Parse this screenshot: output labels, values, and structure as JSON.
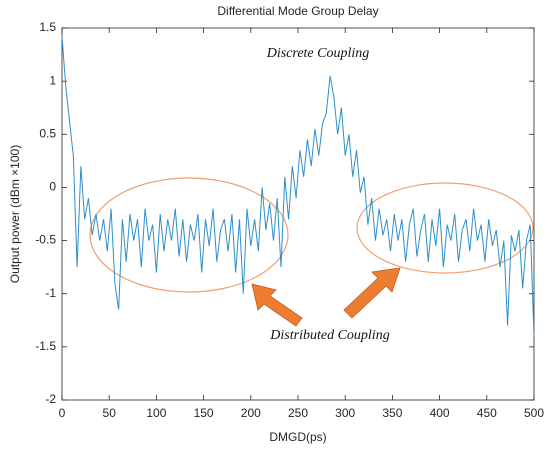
{
  "chart_data": {
    "type": "line",
    "title": "Differential Mode Group Delay",
    "xlabel": "DMGD(ps)",
    "ylabel": "Output power (dBm ×100)",
    "annotations": [
      "Discrete Coupling",
      "Distributed Coupling"
    ],
    "xlim": [
      0,
      500
    ],
    "ylim": [
      -2,
      1.5
    ],
    "xticks": [
      0,
      50,
      100,
      150,
      200,
      250,
      300,
      350,
      400,
      450,
      500
    ],
    "yticks": [
      -2,
      -1.5,
      -1,
      -0.5,
      0,
      0.5,
      1,
      1.5
    ],
    "x": [
      0,
      4,
      8,
      12,
      16,
      20,
      24,
      28,
      32,
      36,
      40,
      44,
      48,
      52,
      56,
      60,
      64,
      68,
      72,
      76,
      80,
      84,
      88,
      92,
      96,
      100,
      104,
      108,
      112,
      116,
      120,
      124,
      128,
      132,
      136,
      140,
      144,
      148,
      152,
      156,
      160,
      164,
      168,
      172,
      176,
      180,
      184,
      188,
      192,
      196,
      200,
      204,
      208,
      212,
      216,
      220,
      224,
      228,
      232,
      236,
      240,
      244,
      248,
      252,
      256,
      260,
      264,
      268,
      272,
      276,
      280,
      284,
      288,
      292,
      296,
      300,
      304,
      308,
      312,
      316,
      320,
      324,
      328,
      332,
      336,
      340,
      344,
      348,
      352,
      356,
      360,
      364,
      368,
      372,
      376,
      380,
      384,
      388,
      392,
      396,
      400,
      404,
      408,
      412,
      416,
      420,
      424,
      428,
      432,
      436,
      440,
      444,
      448,
      452,
      456,
      460,
      464,
      468,
      472,
      476,
      480,
      484,
      488,
      492,
      496,
      500
    ],
    "series": [
      {
        "color": "#2f8fc9",
        "values": [
          1.42,
          0.95,
          0.62,
          0.3,
          -0.75,
          0.2,
          -0.3,
          -0.1,
          -0.45,
          -0.25,
          -0.5,
          -0.3,
          -0.6,
          -0.2,
          -0.9,
          -1.15,
          -0.3,
          -0.7,
          -0.25,
          -0.5,
          -0.3,
          -0.75,
          -0.2,
          -0.5,
          -0.35,
          -0.8,
          -0.25,
          -0.6,
          -0.3,
          -0.5,
          -0.2,
          -0.65,
          -0.3,
          -0.7,
          -0.35,
          -0.5,
          -0.25,
          -0.8,
          -0.3,
          -0.55,
          -0.2,
          -0.7,
          -0.4,
          -0.3,
          -0.6,
          -0.25,
          -0.8,
          -0.3,
          -1.0,
          -0.2,
          -0.55,
          -0.3,
          -0.6,
          0.0,
          -0.4,
          -0.15,
          -0.5,
          -0.1,
          -0.75,
          0.1,
          -0.3,
          0.2,
          -0.1,
          0.35,
          0.1,
          0.45,
          0.2,
          0.55,
          0.3,
          0.6,
          0.7,
          1.05,
          0.85,
          0.5,
          0.75,
          0.3,
          0.5,
          0.1,
          0.35,
          -0.05,
          0.1,
          -0.35,
          -0.1,
          -0.5,
          -0.2,
          -0.45,
          -0.3,
          -0.6,
          -0.25,
          -0.5,
          -0.3,
          -0.7,
          -0.35,
          -0.2,
          -0.65,
          -0.4,
          -0.25,
          -0.7,
          -0.3,
          -0.55,
          -0.2,
          -0.75,
          -0.35,
          -0.5,
          -0.25,
          -0.7,
          -0.4,
          -0.3,
          -0.6,
          -0.2,
          -0.5,
          -0.35,
          -0.7,
          -0.3,
          -0.55,
          -0.4,
          -0.75,
          -0.5,
          -1.3,
          -0.45,
          -0.6,
          -0.4,
          -0.95,
          -0.5,
          -0.35,
          -1.4
        ]
      }
    ]
  }
}
